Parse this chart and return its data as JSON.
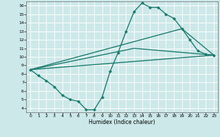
{
  "xlabel": "Humidex (Indice chaleur)",
  "bg_color": "#cce8e8",
  "grid_color": "#ffffff",
  "line_color": "#1a7a6e",
  "xlim": [
    -0.5,
    23.5
  ],
  "ylim": [
    3.5,
    16.5
  ],
  "xticks": [
    0,
    1,
    2,
    3,
    4,
    5,
    6,
    7,
    8,
    9,
    10,
    11,
    12,
    13,
    14,
    15,
    16,
    17,
    18,
    19,
    20,
    21,
    22,
    23
  ],
  "yticks": [
    4,
    5,
    6,
    7,
    8,
    9,
    10,
    11,
    12,
    13,
    14,
    15,
    16
  ],
  "main_line": {
    "x": [
      0,
      1,
      2,
      3,
      4,
      5,
      6,
      7,
      8,
      9,
      10,
      11,
      12,
      13,
      14,
      15,
      16,
      17,
      18,
      19,
      20,
      21,
      22,
      23
    ],
    "y": [
      8.5,
      7.8,
      7.2,
      6.5,
      5.5,
      5.0,
      4.8,
      3.8,
      3.8,
      5.3,
      8.3,
      10.5,
      13.0,
      15.3,
      16.3,
      15.8,
      15.8,
      15.0,
      14.5,
      13.3,
      12.0,
      10.7,
      10.3,
      10.2
    ]
  },
  "straight_lines": [
    {
      "x": [
        0,
        23
      ],
      "y": [
        8.5,
        10.2
      ]
    },
    {
      "x": [
        0,
        23
      ],
      "y": [
        8.5,
        10.2
      ],
      "via_x": 13,
      "via_y": 11.0
    },
    {
      "x": [
        0,
        23
      ],
      "y": [
        8.5,
        10.2
      ],
      "via_x": 19,
      "via_y": 13.3
    }
  ],
  "line1": {
    "x": [
      0,
      23
    ],
    "y": [
      8.5,
      10.2
    ]
  },
  "line2": {
    "x": [
      0,
      13,
      23
    ],
    "y": [
      8.5,
      11.0,
      10.2
    ]
  },
  "line3": {
    "x": [
      0,
      19,
      23
    ],
    "y": [
      8.5,
      13.3,
      10.2
    ]
  }
}
